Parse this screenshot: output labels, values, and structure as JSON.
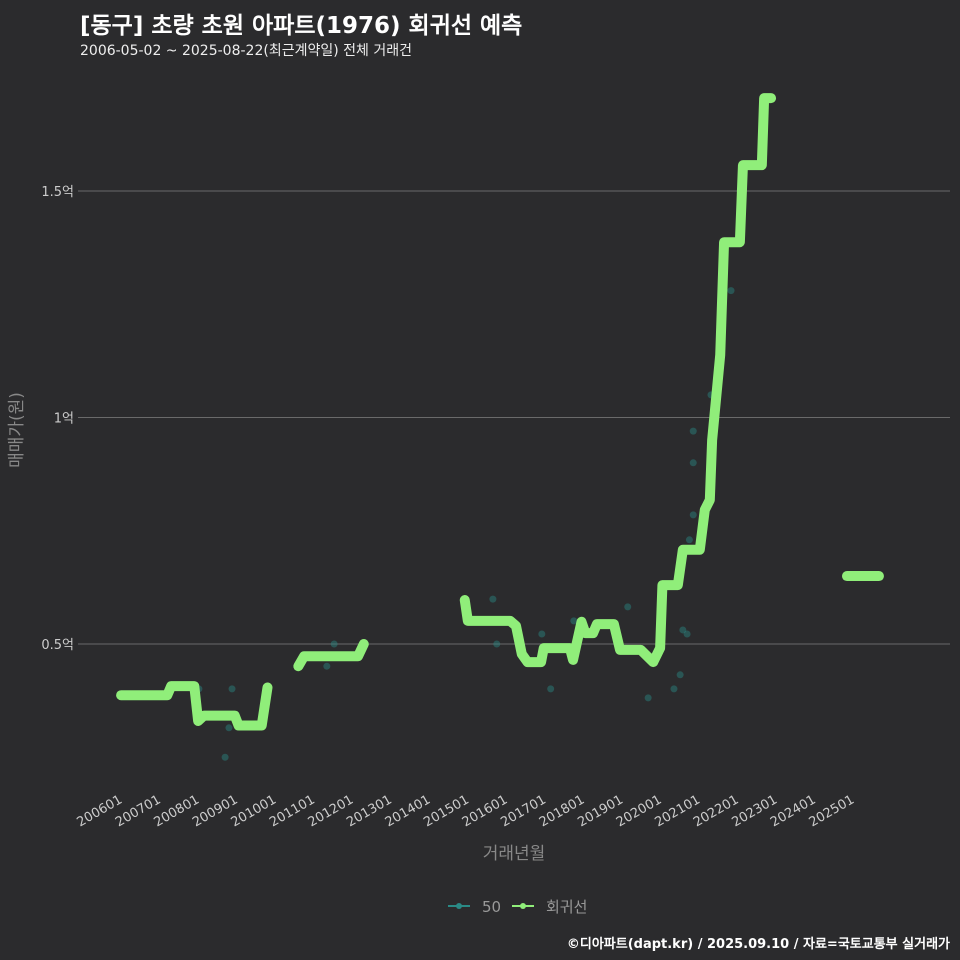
{
  "chart_data": {
    "type": "line",
    "title": "[동구] 초량 초원 아파트(1976) 회귀선 예측",
    "subtitle": "2006-05-02 ~ 2025-08-22(최근계약일) 전체 거래건",
    "xlabel": "거래년월",
    "ylabel": "매매가(원)",
    "caption": "©디아파트(dapt.kr) / 2025.09.10 / 자료=국토교통부 실거래가",
    "y_unit": "만원",
    "ylim": [
      1700,
      17500
    ],
    "xlim": [
      2005.6,
      2026.5
    ],
    "y_ticks": [
      {
        "value": 5000,
        "label": "0.5억"
      },
      {
        "value": 10000,
        "label": "1억"
      },
      {
        "value": 15000,
        "label": "1.5억"
      }
    ],
    "x_ticks": [
      "200601",
      "200701",
      "200801",
      "200901",
      "201001",
      "201101",
      "201201",
      "201301",
      "201401",
      "201501",
      "201601",
      "201701",
      "201801",
      "201901",
      "202001",
      "202101",
      "202201",
      "202301",
      "202401",
      "202501"
    ],
    "legend": {
      "position": "bottom",
      "entries": [
        {
          "label": "50",
          "color": "#2a8a86"
        },
        {
          "label": "회귀선",
          "color": "#90ee7a"
        }
      ]
    },
    "series": [
      {
        "name": "회귀선",
        "color": "#90ee7a",
        "segments": [
          [
            [
              2005.95,
              3870
            ],
            [
              2007.15,
              3870
            ],
            [
              2007.25,
              4070
            ],
            [
              2007.85,
              4070
            ],
            [
              2007.95,
              3300
            ],
            [
              2008.1,
              3420
            ],
            [
              2008.9,
              3420
            ],
            [
              2009.0,
              3200
            ],
            [
              2009.6,
              3200
            ],
            [
              2009.75,
              4040
            ]
          ],
          [
            [
              2010.55,
              4510
            ],
            [
              2010.7,
              4730
            ],
            [
              2012.1,
              4730
            ],
            [
              2012.25,
              5000
            ]
          ],
          [
            [
              2014.87,
              5970
            ],
            [
              2014.95,
              5510
            ],
            [
              2016.05,
              5510
            ],
            [
              2016.2,
              5400
            ],
            [
              2016.35,
              4780
            ],
            [
              2016.5,
              4600
            ],
            [
              2016.85,
              4600
            ],
            [
              2016.92,
              4910
            ],
            [
              2017.6,
              4910
            ],
            [
              2017.68,
              4650
            ],
            [
              2017.9,
              5490
            ],
            [
              2018.0,
              5240
            ],
            [
              2018.2,
              5240
            ],
            [
              2018.3,
              5440
            ],
            [
              2018.74,
              5440
            ],
            [
              2018.9,
              4870
            ],
            [
              2019.44,
              4870
            ],
            [
              2019.76,
              4600
            ],
            [
              2019.94,
              4910
            ],
            [
              2020.0,
              6300
            ],
            [
              2020.4,
              6300
            ],
            [
              2020.53,
              7080
            ],
            [
              2020.97,
              7080
            ],
            [
              2021.1,
              7960
            ],
            [
              2021.23,
              8180
            ],
            [
              2021.29,
              9500
            ],
            [
              2021.5,
              11380
            ],
            [
              2021.6,
              13870
            ],
            [
              2022.01,
              13870
            ],
            [
              2022.09,
              15570
            ],
            [
              2022.58,
              15570
            ],
            [
              2022.64,
              17050
            ],
            [
              2022.82,
              17050
            ]
          ],
          [
            [
              2024.79,
              6500
            ],
            [
              2025.62,
              6500
            ]
          ]
        ]
      },
      {
        "name": "50",
        "color": "#2a8a86",
        "type": "scatter",
        "points": [
          [
            2007.97,
            4010
          ],
          [
            2008.83,
            4010
          ],
          [
            2008.65,
            2500
          ],
          [
            2008.75,
            3150
          ],
          [
            2011.29,
            4510
          ],
          [
            2011.48,
            5000
          ],
          [
            2015.6,
            5990
          ],
          [
            2015.7,
            5000
          ],
          [
            2016.87,
            5220
          ],
          [
            2017.1,
            4010
          ],
          [
            2017.7,
            5510
          ],
          [
            2019.1,
            5820
          ],
          [
            2019.63,
            3810
          ],
          [
            2020.3,
            4010
          ],
          [
            2020.46,
            4320
          ],
          [
            2020.53,
            5310
          ],
          [
            2020.64,
            5220
          ],
          [
            2020.7,
            7300
          ],
          [
            2020.8,
            7850
          ],
          [
            2020.8,
            9700
          ],
          [
            2020.8,
            9000
          ],
          [
            2021.26,
            10500
          ],
          [
            2021.78,
            12800
          ]
        ]
      }
    ]
  }
}
